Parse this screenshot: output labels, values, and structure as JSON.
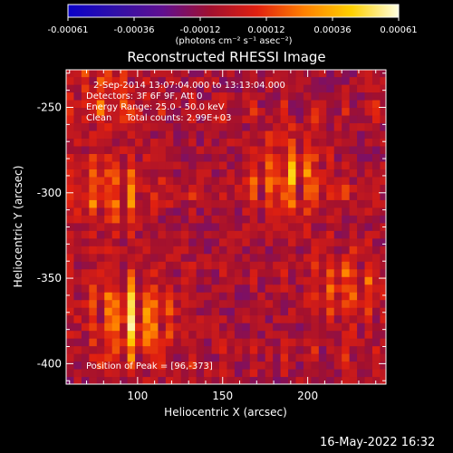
{
  "chart_data": {
    "type": "heatmap",
    "title": "Reconstructed RHESSI Image",
    "xlabel": "Heliocentric X (arcsec)",
    "ylabel": "Heliocentric Y (arcsec)",
    "xlim": [
      58,
      246
    ],
    "ylim": [
      -412,
      -228
    ],
    "x_ticks": [
      100,
      150,
      200
    ],
    "y_ticks": [
      -400,
      -350,
      -300,
      -250
    ],
    "grid": false,
    "colorbar": {
      "title": "(photons cm⁻² s⁻¹ asec⁻²)",
      "min": -0.00061,
      "max": 0.00061,
      "ticks": [
        "-0.00061",
        "-0.00036",
        "-0.00012",
        "0.00012",
        "0.00036",
        "0.00061"
      ],
      "stops": [
        "#0a00c8",
        "#3010a8",
        "#601090",
        "#a01030",
        "#e02010",
        "#ff8000",
        "#ffd000",
        "#ffffe0"
      ]
    },
    "annotations": [
      "2-Sep-2014 13:07:04.000 to 13:13:04.000",
      "Detectors: 3F 6F 9F, Att 0",
      "Energy Range: 25.0 - 50.0 keV",
      "Clean     Total counts: 2.99E+03"
    ],
    "peak_label": "Position of Peak = [96,-373]",
    "peak": [
      96,
      -373
    ],
    "sources": [
      {
        "x": 96,
        "y": -373,
        "value": 0.00061
      },
      {
        "x": 85,
        "y": -300,
        "value": 0.0004
      },
      {
        "x": 190,
        "y": -290,
        "value": 0.00045
      },
      {
        "x": 225,
        "y": -355,
        "value": 0.0003
      },
      {
        "x": 80,
        "y": -240,
        "value": 0.00025
      }
    ]
  },
  "footer": {
    "timestamp": "16-May-2022 16:32"
  }
}
